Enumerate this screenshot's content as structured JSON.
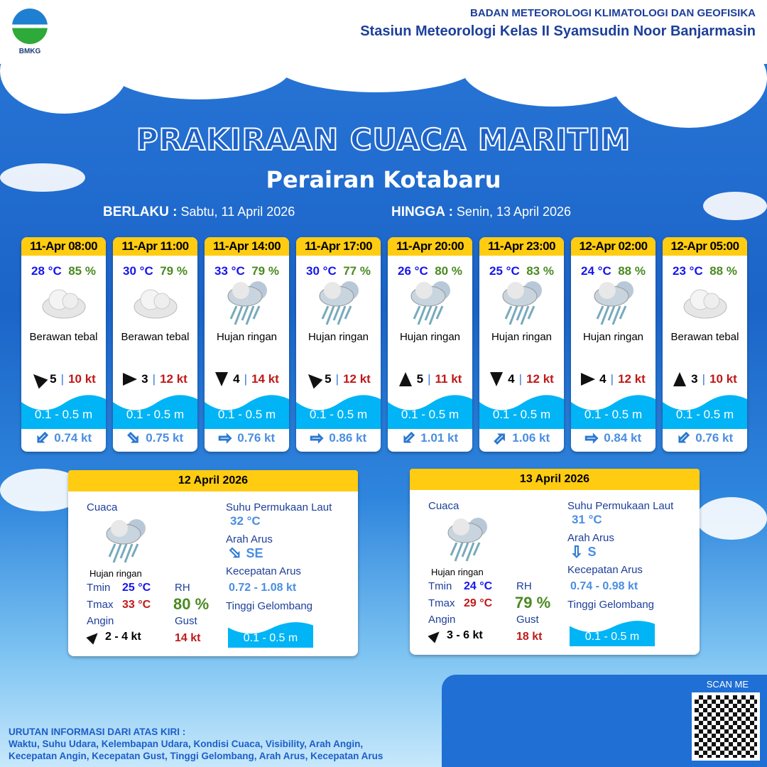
{
  "header": {
    "logo_text": "BMKG",
    "org": "BADAN METEOROLOGI KLIMATOLOGI DAN GEOFISIKA",
    "station": "Stasiun Meteorologi Kelas II Syamsudin Noor Banjarmasin"
  },
  "title": "PRAKIRAAN CUACA MARITIM",
  "subtitle": "Perairan Kotabaru",
  "valid": {
    "from_label": "BERLAKU :",
    "from": "Sabtu, 11 April 2026",
    "to_label": "HINGGA :",
    "to": "Senin, 13 April 2026"
  },
  "forecasts": [
    {
      "time": "11-Apr 08:00",
      "temp": "28 °C",
      "rh": "85 %",
      "icon": "cloud-icon",
      "cond": "Berawan tebal",
      "wind_dir": "NW",
      "wind": "5",
      "gust": "10 kt",
      "wave": "0.1 - 0.5 m",
      "cur_dir": "SW",
      "cur": "0.74 kt"
    },
    {
      "time": "11-Apr 11:00",
      "temp": "30 °C",
      "rh": "79 %",
      "icon": "cloud-icon",
      "cond": "Berawan tebal",
      "wind_dir": "E",
      "wind": "3",
      "gust": "12 kt",
      "wave": "0.1 - 0.5 m",
      "cur_dir": "SE",
      "cur": "0.75 kt"
    },
    {
      "time": "11-Apr 14:00",
      "temp": "33 °C",
      "rh": "79 %",
      "icon": "rain-icon",
      "cond": "Hujan ringan",
      "wind_dir": "S",
      "wind": "4",
      "gust": "14 kt",
      "wave": "0.1 - 0.5 m",
      "cur_dir": "E",
      "cur": "0.76 kt"
    },
    {
      "time": "11-Apr 17:00",
      "temp": "30 °C",
      "rh": "77 %",
      "icon": "rain-icon",
      "cond": "Hujan ringan",
      "wind_dir": "NW",
      "wind": "5",
      "gust": "12 kt",
      "wave": "0.1 - 0.5 m",
      "cur_dir": "E",
      "cur": "0.86 kt"
    },
    {
      "time": "11-Apr 20:00",
      "temp": "26 °C",
      "rh": "80 %",
      "icon": "rain-icon",
      "cond": "Hujan ringan",
      "wind_dir": "N",
      "wind": "5",
      "gust": "11 kt",
      "wave": "0.1 - 0.5 m",
      "cur_dir": "SW",
      "cur": "1.01 kt"
    },
    {
      "time": "11-Apr 23:00",
      "temp": "25 °C",
      "rh": "83 %",
      "icon": "rain-icon",
      "cond": "Hujan ringan",
      "wind_dir": "S",
      "wind": "4",
      "gust": "12 kt",
      "wave": "0.1 - 0.5 m",
      "cur_dir": "NE",
      "cur": "1.06 kt"
    },
    {
      "time": "12-Apr 02:00",
      "temp": "24 °C",
      "rh": "88 %",
      "icon": "rain-icon",
      "cond": "Hujan ringan",
      "wind_dir": "E",
      "wind": "4",
      "gust": "12 kt",
      "wave": "0.1 - 0.5 m",
      "cur_dir": "E",
      "cur": "0.84 kt"
    },
    {
      "time": "12-Apr 05:00",
      "temp": "23 °C",
      "rh": "88 %",
      "icon": "cloud-icon",
      "cond": "Berawan tebal",
      "wind_dir": "N",
      "wind": "3",
      "gust": "10 kt",
      "wave": "0.1 - 0.5 m",
      "cur_dir": "SW",
      "cur": "0.76 kt"
    }
  ],
  "labels": {
    "cuaca": "Cuaca",
    "tmin": "Tmin",
    "tmax": "Tmax",
    "rh": "RH",
    "angin": "Angin",
    "gust": "Gust",
    "sst": "Suhu Permukaan Laut",
    "arah": "Arah Arus",
    "kec": "Kecepatan Arus",
    "tinggi": "Tinggi Gelombang"
  },
  "daily": [
    {
      "date": "12 April 2026",
      "cond": "Hujan ringan",
      "tmin": "25 °C",
      "tmax": "33 °C",
      "rh": "80 %",
      "wind": "2 - 4 kt",
      "wind_dir": "NE",
      "gust": "14 kt",
      "sst": "32 °C",
      "cur_dir": "SE",
      "cur": "0.72 - 1.08 kt",
      "wave": "0.1 - 0.5 m"
    },
    {
      "date": "13 April 2026",
      "cond": "Hujan ringan",
      "tmin": "24 °C",
      "tmax": "29 °C",
      "rh": "79 %",
      "wind": "3 - 6 kt",
      "wind_dir": "NE",
      "gust": "18 kt",
      "sst": "31 °C",
      "cur_dir": "S",
      "cur": "0.74 - 0.98 kt",
      "wave": "0.1 - 0.5 m"
    }
  ],
  "scan_label": "SCAN ME",
  "footer": {
    "title": "URUTAN INFORMASI DARI ATAS KIRI :",
    "line1": "Waktu, Suhu Udara, Kelembapan Udara, Kondisi Cuaca, Visibility, Arah Angin,",
    "line2": "Kecepatan Angin, Kecepatan Gust, Tinggi Gelombang, Arah Arus, Kecepatan Arus"
  },
  "colors": {
    "header_yellow": "#ffcc11",
    "temp": "#1515ee",
    "rh": "#4a8a22",
    "gust": "#c01818",
    "wave": "#00b4f5"
  }
}
